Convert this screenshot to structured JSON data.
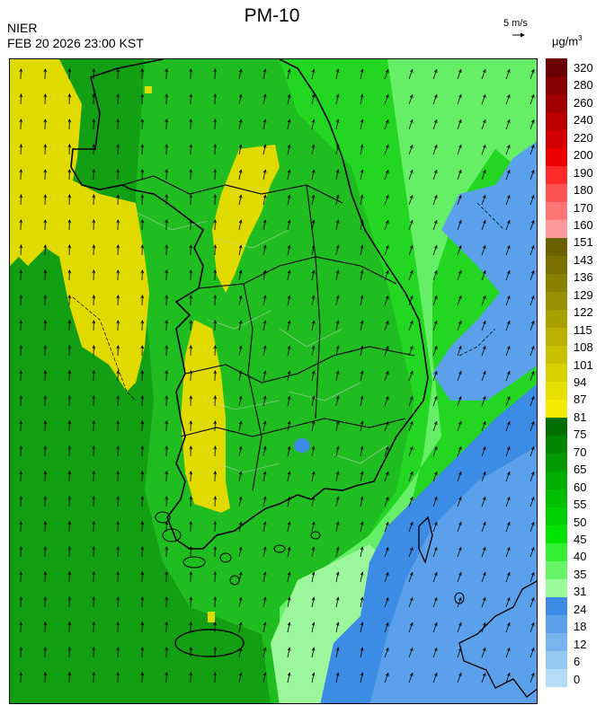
{
  "header": {
    "title": "PM-10",
    "org": "NIER",
    "timestamp": "FEB 20 2026 23:00 KST",
    "wind_scale": "5 m/s",
    "unit_base": "μg/m",
    "unit_exp": "3"
  },
  "legend": {
    "ticks": [
      "320",
      "280",
      "260",
      "240",
      "220",
      "200",
      "190",
      "180",
      "170",
      "160",
      "151",
      "143",
      "136",
      "129",
      "122",
      "115",
      "108",
      "101",
      "94",
      "87",
      "81",
      "75",
      "70",
      "65",
      "60",
      "55",
      "50",
      "45",
      "40",
      "35",
      "31",
      "24",
      "18",
      "12",
      "6",
      "0"
    ],
    "colors": [
      "#6b0000",
      "#850000",
      "#a00000",
      "#bb0000",
      "#d20000",
      "#ee0000",
      "#ff2a2a",
      "#ff5252",
      "#ff7474",
      "#ff9a9a",
      "#6b6100",
      "#7b7100",
      "#8a8000",
      "#998f00",
      "#a9a000",
      "#b9b000",
      "#c9c000",
      "#d9d100",
      "#e6de00",
      "#f2eb00",
      "#006f00",
      "#008500",
      "#009900",
      "#00ad00",
      "#00bf00",
      "#00d000",
      "#00e200",
      "#33ee33",
      "#66f566",
      "#99fa99",
      "#3c8ce6",
      "#5aa0ea",
      "#78b4ee",
      "#96c8f4",
      "#b4dcf8"
    ]
  },
  "map": {
    "colors": {
      "dark_green": "#139f13",
      "green": "#1fbd1f",
      "bright_green": "#22d622",
      "light_green": "#66ef66",
      "pale_green": "#9cf79c",
      "yellow": "#e1da00",
      "blue": "#3c8ce6",
      "light_blue": "#5aa0ea"
    }
  }
}
